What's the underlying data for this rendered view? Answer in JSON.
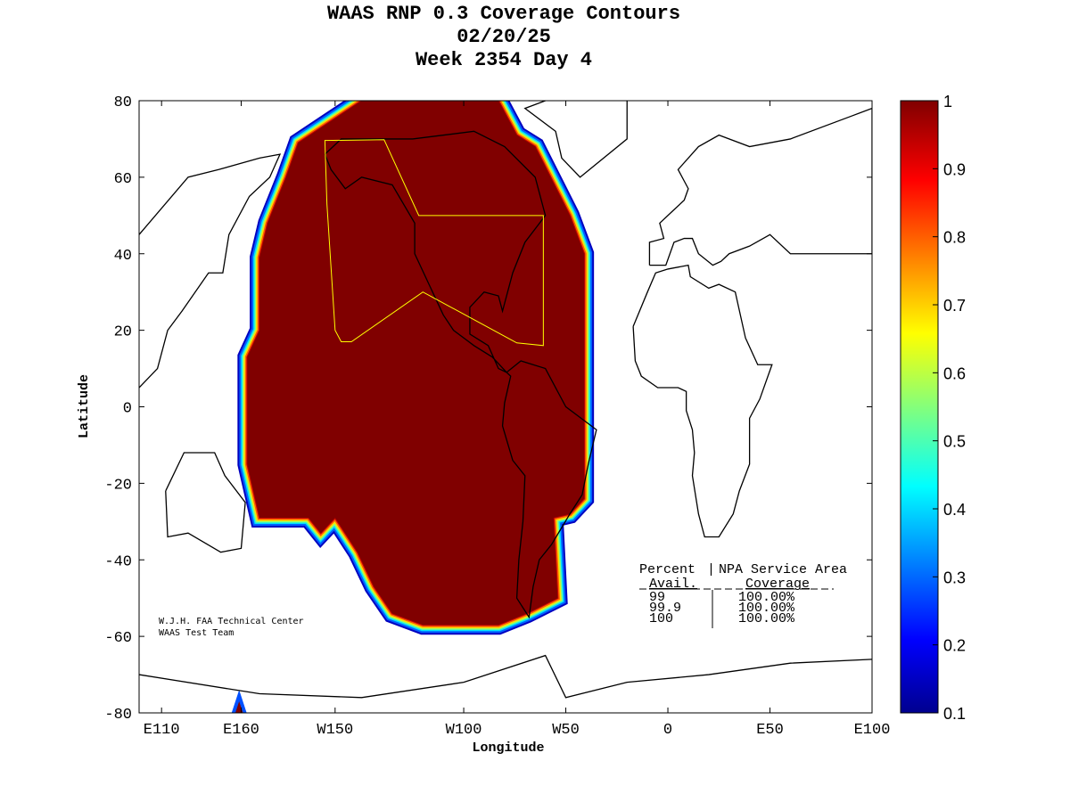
{
  "chart_data": {
    "type": "heatmap",
    "title_lines": [
      "WAAS RNP 0.3 Coverage Contours",
      "02/20/25",
      "Week 2354 Day 4"
    ],
    "xlabel": "Longitude",
    "ylabel": "Latitude",
    "xlim": [
      -259,
      100
    ],
    "ylim": [
      -80,
      80
    ],
    "x_ticks": [
      {
        "value": -248,
        "label": "E110"
      },
      {
        "value": -209,
        "label": "E160"
      },
      {
        "value": -163,
        "label": "W150"
      },
      {
        "value": -100,
        "label": "W100"
      },
      {
        "value": -50,
        "label": "W50"
      },
      {
        "value": 0,
        "label": "0"
      },
      {
        "value": 50,
        "label": "E50"
      },
      {
        "value": 100,
        "label": "E100"
      }
    ],
    "y_ticks": [
      80,
      60,
      40,
      20,
      0,
      -20,
      -40,
      -60,
      -80
    ],
    "colorbar": {
      "min": 0.1,
      "max": 1,
      "ticks": [
        "0.1",
        "0.2",
        "0.3",
        "0.4",
        "0.5",
        "0.6",
        "0.7",
        "0.8",
        "0.9",
        "1"
      ]
    },
    "coverage_region_value": 1,
    "coverage_region": [
      [
        -181,
        69
      ],
      [
        -150,
        80
      ],
      [
        -83,
        80
      ],
      [
        -74,
        71
      ],
      [
        -65,
        68
      ],
      [
        -48,
        50
      ],
      [
        -41,
        40
      ],
      [
        -41,
        -24
      ],
      [
        -48,
        -28
      ],
      [
        -56,
        -29
      ],
      [
        -54,
        -50
      ],
      [
        -69,
        -54
      ],
      [
        -83,
        -57
      ],
      [
        -120,
        -57
      ],
      [
        -135,
        -54
      ],
      [
        -144,
        -47
      ],
      [
        -152,
        -38
      ],
      [
        -163,
        -29
      ],
      [
        -170,
        -33
      ],
      [
        -176,
        -29
      ],
      [
        -200,
        -29
      ],
      [
        -206,
        -15
      ],
      [
        -206,
        13
      ],
      [
        -200,
        20
      ],
      [
        -200,
        39
      ],
      [
        -196,
        48
      ],
      [
        -187,
        60
      ]
    ],
    "service_area": [
      [
        -168,
        69.6
      ],
      [
        -139,
        69.8
      ],
      [
        -122,
        50
      ],
      [
        -61,
        50
      ],
      [
        -61,
        16
      ],
      [
        -74,
        16.7
      ],
      [
        -120,
        30
      ],
      [
        -155,
        17
      ],
      [
        -160,
        17
      ],
      [
        -163,
        20
      ],
      [
        -167,
        53
      ]
    ],
    "stats_table": {
      "header1": [
        "Percent",
        "NPA Service Area"
      ],
      "header2": [
        "Avail.",
        "Coverage"
      ],
      "rows": [
        [
          "99",
          "100.00%"
        ],
        [
          "99.9",
          "100.00%"
        ],
        [
          "100",
          "100.00%"
        ]
      ]
    },
    "credits": [
      "W.J.H. FAA Technical Center",
      "WAAS Test Team"
    ]
  }
}
